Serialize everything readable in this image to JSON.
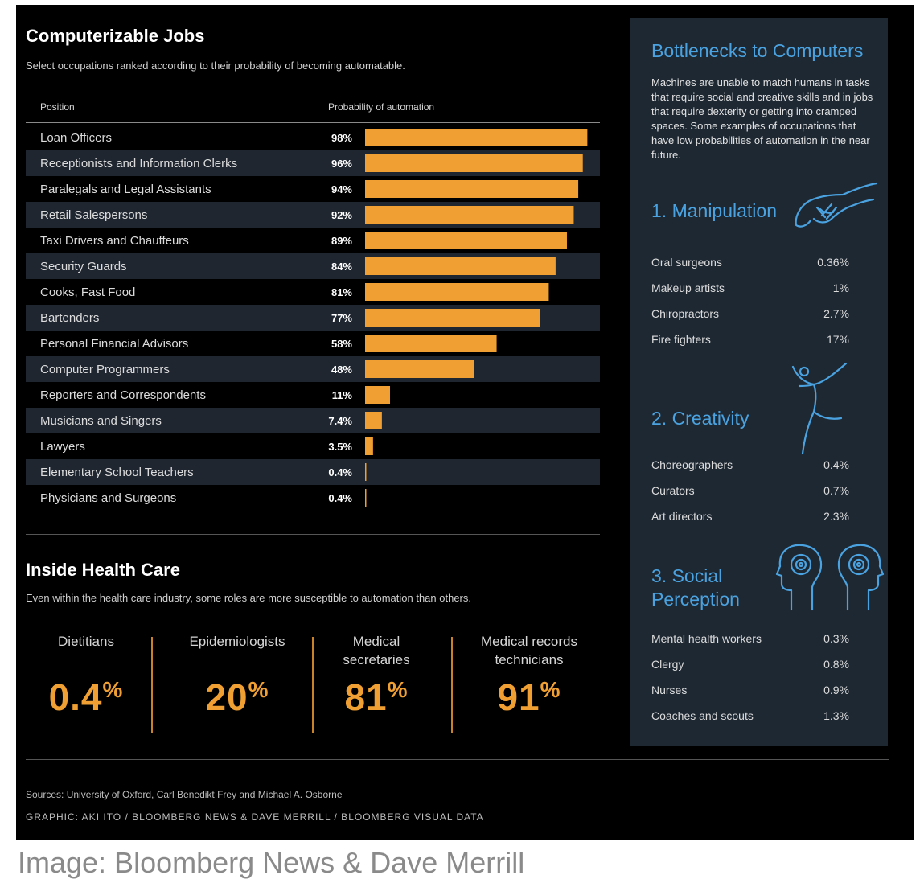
{
  "title": "Computerizable Jobs",
  "subtitle": "Select occupations ranked according to their probability of becoming automatable.",
  "col_position": "Position",
  "col_probability": "Probability of automation",
  "chart_data": {
    "type": "bar",
    "orientation": "horizontal",
    "title": "Computerizable Jobs",
    "xlim": [
      0,
      100
    ],
    "categories": [
      "Loan Officers",
      "Receptionists and Information Clerks",
      "Paralegals and Legal Assistants",
      "Retail Salespersons",
      "Taxi Drivers and Chauffeurs",
      "Security Guards",
      "Cooks, Fast Food",
      "Bartenders",
      "Personal Financial Advisors",
      "Computer Programmers",
      "Reporters and Correspondents",
      "Musicians and Singers",
      "Lawyers",
      "Elementary School Teachers",
      "Physicians and Surgeons"
    ],
    "values": [
      98,
      96,
      94,
      92,
      89,
      84,
      81,
      77,
      58,
      48,
      11,
      7.4,
      3.5,
      0.4,
      0.4
    ],
    "labels": [
      "98%",
      "96%",
      "94%",
      "92%",
      "89%",
      "84%",
      "81%",
      "77%",
      "58%",
      "48%",
      "11%",
      "7.4%",
      "3.5%",
      "0.4%",
      "0.4%"
    ],
    "bar_color": "#f0a032"
  },
  "health_care": {
    "title": "Inside Health Care",
    "subtitle": "Even within the health care industry, some roles are more susceptible to automation than others.",
    "items": [
      {
        "label": "Dietitians",
        "value": "0.4",
        "unit": "%"
      },
      {
        "label": "Epidemiologists",
        "value": "20",
        "unit": "%"
      },
      {
        "label": "Medical secretaries",
        "value": "81",
        "unit": "%"
      },
      {
        "label": "Medical records technicians",
        "value": "91",
        "unit": "%"
      }
    ]
  },
  "sidebar": {
    "title": "Bottlenecks to Computers",
    "intro": "Machines are unable to match humans in tasks that require social and creative skills and in jobs that require dexterity or getting into cramped spaces. Some examples of occupations that have low probabilities of automation in the near future.",
    "sections": [
      {
        "title": "1. Manipulation",
        "icon": "hand-icon",
        "rows": [
          {
            "name": "Oral surgeons",
            "value": "0.36%"
          },
          {
            "name": "Makeup artists",
            "value": "1%"
          },
          {
            "name": "Chiropractors",
            "value": "2.7%"
          },
          {
            "name": "Fire fighters",
            "value": "17%"
          }
        ]
      },
      {
        "title": "2. Creativity",
        "icon": "dancer-icon",
        "rows": [
          {
            "name": "Choreographers",
            "value": "0.4%"
          },
          {
            "name": "Curators",
            "value": "0.7%"
          },
          {
            "name": "Art directors",
            "value": "2.3%"
          }
        ]
      },
      {
        "title": "3. Social Perception",
        "icon": "heads-icon",
        "rows": [
          {
            "name": "Mental health workers",
            "value": "0.3%"
          },
          {
            "name": "Clergy",
            "value": "0.8%"
          },
          {
            "name": "Nurses",
            "value": "0.9%"
          },
          {
            "name": "Coaches and scouts",
            "value": "1.3%"
          }
        ]
      }
    ],
    "accent_color": "#4aa3e0"
  },
  "sources": "Sources: University of Oxford, Carl Benedikt Frey and Michael A. Osborne",
  "credit": "GRAPHIC: AKI ITO / BLOOMBERG NEWS & DAVE MERRILL / BLOOMBERG VISUAL DATA",
  "caption": "Image: Bloomberg News & Dave Merrill"
}
